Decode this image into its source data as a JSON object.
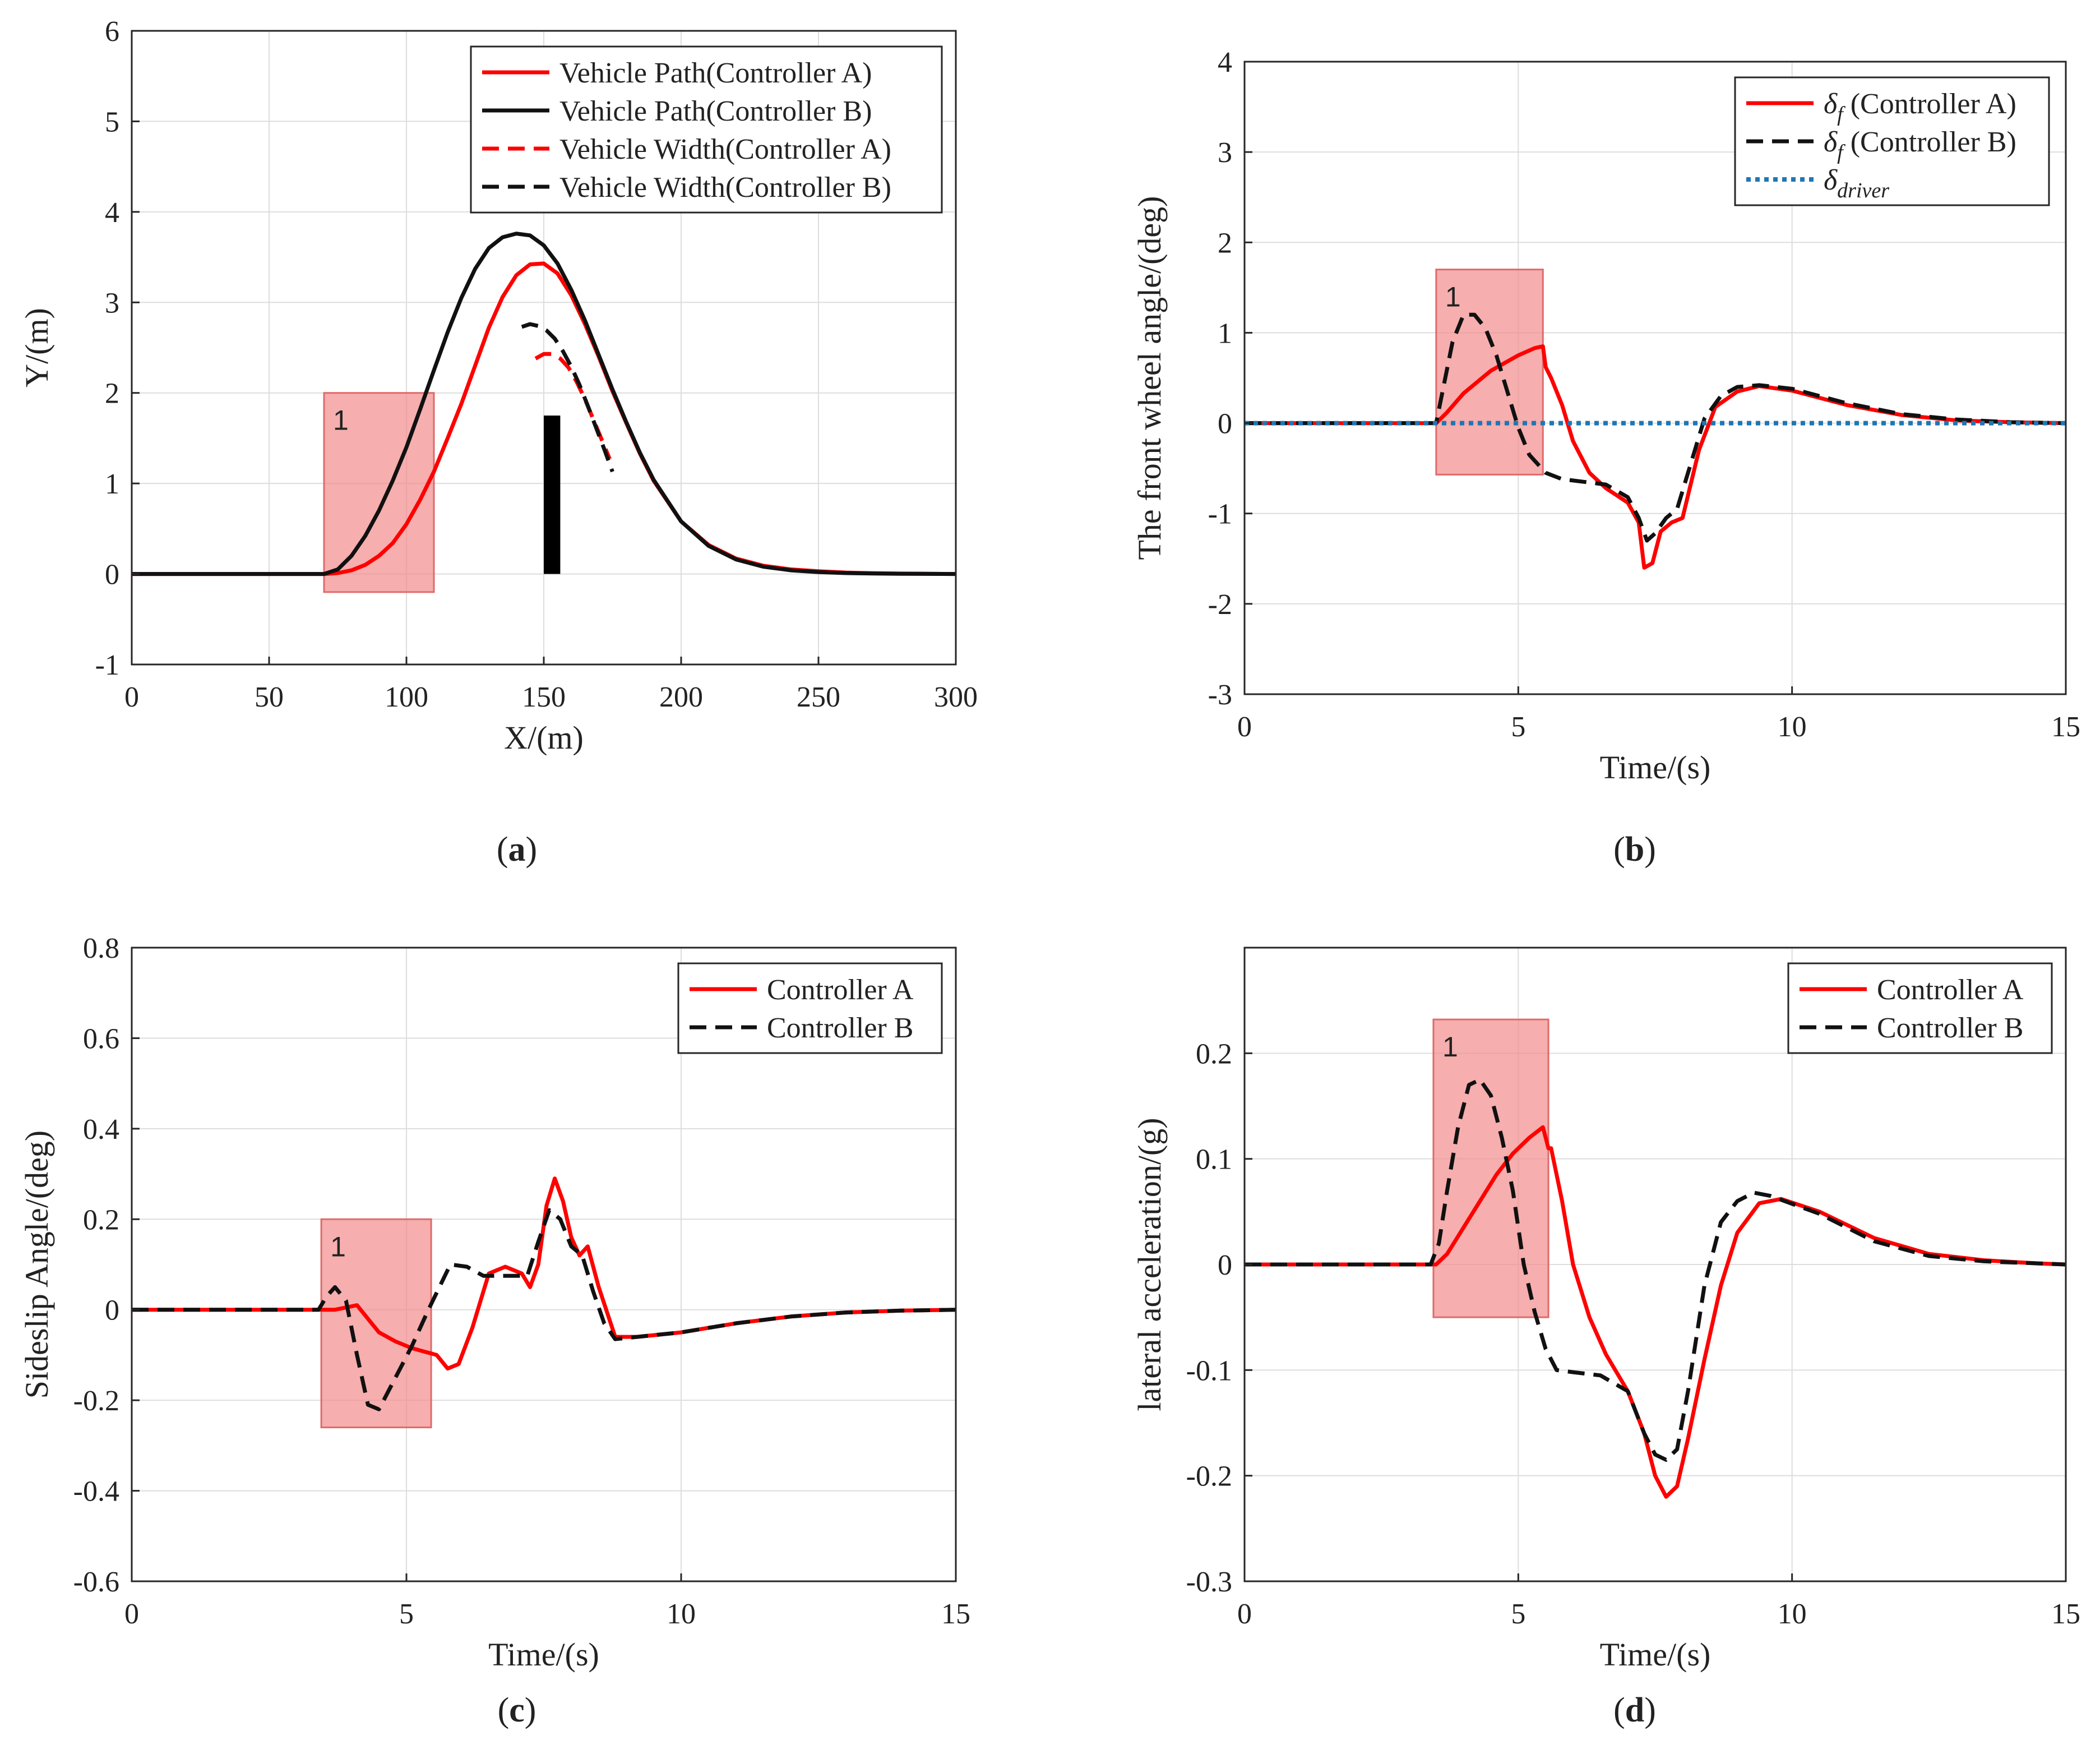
{
  "figure": {
    "colors": {
      "controllerA": "#ff0000",
      "controllerB": "#111111",
      "driver": "#1f77b4",
      "highlight": "#f28b8b",
      "highlightEdge": "#e06a6a",
      "grid": "#dddddd",
      "obstacle": "#000000"
    }
  },
  "chart_data": [
    {
      "id": "a",
      "type": "line",
      "panel_label": "a",
      "xlabel": "X/(m)",
      "ylabel": "Y/(m)",
      "xlim": [
        0,
        300
      ],
      "ylim": [
        -1,
        6
      ],
      "xticks": [
        0,
        50,
        100,
        150,
        200,
        250,
        300
      ],
      "yticks": [
        -1,
        0,
        1,
        2,
        3,
        4,
        5,
        6
      ],
      "grid": true,
      "legend": "top-right",
      "highlight": {
        "label": "1",
        "x": [
          70,
          110
        ],
        "y": [
          -0.2,
          2.0
        ]
      },
      "obstacle": {
        "x": [
          150,
          156
        ],
        "y": [
          0,
          1.75
        ]
      },
      "series": [
        {
          "name": "Vehicle Path(Controller A)",
          "color": "#ff0000",
          "dash": "solid",
          "x": [
            0,
            40,
            70,
            75,
            80,
            85,
            90,
            95,
            100,
            105,
            110,
            115,
            120,
            125,
            130,
            135,
            140,
            145,
            150,
            155,
            160,
            165,
            170,
            175,
            180,
            185,
            190,
            200,
            210,
            220,
            230,
            240,
            250,
            260,
            270,
            280,
            290,
            300
          ],
          "y": [
            0,
            0,
            0,
            0.01,
            0.04,
            0.1,
            0.2,
            0.34,
            0.55,
            0.82,
            1.13,
            1.5,
            1.88,
            2.3,
            2.72,
            3.06,
            3.3,
            3.42,
            3.43,
            3.32,
            3.08,
            2.76,
            2.4,
            2.02,
            1.67,
            1.33,
            1.03,
            0.58,
            0.32,
            0.17,
            0.09,
            0.05,
            0.03,
            0.015,
            0.008,
            0.004,
            0.002,
            0
          ]
        },
        {
          "name": "Vehicle Path(Controller B)",
          "color": "#111111",
          "dash": "solid",
          "x": [
            0,
            40,
            70,
            75,
            80,
            85,
            90,
            95,
            100,
            105,
            110,
            115,
            120,
            125,
            130,
            135,
            140,
            145,
            150,
            155,
            160,
            165,
            170,
            175,
            180,
            185,
            190,
            200,
            210,
            220,
            230,
            240,
            250,
            260,
            270,
            280,
            290,
            300
          ],
          "y": [
            0,
            0,
            0,
            0.05,
            0.2,
            0.42,
            0.7,
            1.03,
            1.4,
            1.82,
            2.25,
            2.67,
            3.05,
            3.37,
            3.6,
            3.72,
            3.76,
            3.74,
            3.63,
            3.43,
            3.14,
            2.8,
            2.42,
            2.04,
            1.68,
            1.34,
            1.04,
            0.58,
            0.31,
            0.16,
            0.08,
            0.04,
            0.02,
            0.01,
            0.005,
            0.002,
            0.001,
            0
          ]
        },
        {
          "name": "Vehicle Width(Controller A)",
          "color": "#ff0000",
          "dash": "dashed",
          "x": [
            147,
            150,
            153,
            156,
            159,
            162,
            165,
            168,
            171,
            174
          ],
          "y": [
            2.38,
            2.43,
            2.43,
            2.38,
            2.28,
            2.12,
            1.93,
            1.71,
            1.49,
            1.27
          ]
        },
        {
          "name": "Vehicle Width(Controller B)",
          "color": "#111111",
          "dash": "dashed",
          "x": [
            142,
            145,
            148,
            151,
            154,
            157,
            160,
            163,
            166,
            169,
            172,
            175
          ],
          "y": [
            2.73,
            2.76,
            2.74,
            2.69,
            2.6,
            2.46,
            2.29,
            2.09,
            1.86,
            1.62,
            1.38,
            1.13
          ]
        }
      ]
    },
    {
      "id": "b",
      "type": "line",
      "panel_label": "b",
      "xlabel": "Time/(s)",
      "ylabel": "The front wheel angle/(deg)",
      "xlim": [
        0,
        15
      ],
      "ylim": [
        -3,
        4
      ],
      "xticks": [
        0,
        5,
        10,
        15
      ],
      "yticks": [
        -3,
        -2,
        -1,
        0,
        1,
        2,
        3,
        4
      ],
      "grid": true,
      "legend": "top-right",
      "highlight": {
        "label": "1",
        "x": [
          3.5,
          5.45
        ],
        "y": [
          -0.57,
          1.7
        ]
      },
      "series": [
        {
          "name": "δf (Controller A)",
          "legend_symbol": "δ",
          "legend_sub": "f",
          "legend_text": "(Controller A)",
          "color": "#ff0000",
          "dash": "solid",
          "x": [
            0,
            3.5,
            3.7,
            4.0,
            4.5,
            5.0,
            5.3,
            5.45,
            5.5,
            5.6,
            5.8,
            6.0,
            6.3,
            6.6,
            7.0,
            7.2,
            7.3,
            7.45,
            7.6,
            7.8,
            8.0,
            8.3,
            8.6,
            9.0,
            9.4,
            10,
            11,
            12,
            13,
            14,
            15
          ],
          "y": [
            0,
            0,
            0.12,
            0.33,
            0.58,
            0.75,
            0.83,
            0.85,
            0.62,
            0.5,
            0.2,
            -0.2,
            -0.55,
            -0.72,
            -0.88,
            -1.1,
            -1.6,
            -1.55,
            -1.2,
            -1.1,
            -1.05,
            -0.3,
            0.18,
            0.35,
            0.41,
            0.36,
            0.2,
            0.09,
            0.03,
            0.01,
            0
          ]
        },
        {
          "name": "δf (Controller B)",
          "legend_symbol": "δ",
          "legend_sub": "f",
          "legend_text": "(Controller B)",
          "color": "#111111",
          "dash": "dashed",
          "x": [
            0,
            3.5,
            3.6,
            3.8,
            4.0,
            4.2,
            4.4,
            4.6,
            4.8,
            5.0,
            5.2,
            5.5,
            5.8,
            6.2,
            6.6,
            7.0,
            7.2,
            7.35,
            7.5,
            7.7,
            7.9,
            8.1,
            8.4,
            8.7,
            9.0,
            9.4,
            10,
            11,
            12,
            13,
            14,
            15
          ],
          "y": [
            0,
            0,
            0.3,
            0.9,
            1.2,
            1.2,
            1.05,
            0.75,
            0.35,
            -0.05,
            -0.35,
            -0.55,
            -0.62,
            -0.65,
            -0.68,
            -0.82,
            -1.05,
            -1.3,
            -1.22,
            -1.05,
            -0.95,
            -0.55,
            0.05,
            0.3,
            0.4,
            0.42,
            0.38,
            0.22,
            0.1,
            0.04,
            0.01,
            0
          ]
        },
        {
          "name": "δdriver",
          "legend_symbol": "δ",
          "legend_sub": "driver",
          "legend_text": "",
          "color": "#1f77b4",
          "dash": "dotted",
          "x": [
            0,
            15
          ],
          "y": [
            0,
            0
          ]
        }
      ]
    },
    {
      "id": "c",
      "type": "line",
      "panel_label": "c",
      "xlabel": "Time/(s)",
      "ylabel": "Sideslip Angle/(deg)",
      "xlim": [
        0,
        15
      ],
      "ylim": [
        -0.6,
        0.8
      ],
      "xticks": [
        0,
        5,
        10,
        15
      ],
      "yticks": [
        -0.6,
        -0.4,
        -0.2,
        0,
        0.2,
        0.4,
        0.6,
        0.8
      ],
      "grid": true,
      "legend": "top-right",
      "highlight": {
        "label": "1",
        "x": [
          3.45,
          5.45
        ],
        "y": [
          -0.26,
          0.2
        ]
      },
      "series": [
        {
          "name": "Controller A",
          "color": "#ff0000",
          "dash": "solid",
          "x": [
            0,
            3.5,
            3.7,
            3.9,
            4.1,
            4.3,
            4.5,
            4.8,
            5.1,
            5.4,
            5.55,
            5.75,
            5.95,
            6.2,
            6.5,
            6.8,
            7.1,
            7.25,
            7.4,
            7.55,
            7.7,
            7.85,
            8.0,
            8.15,
            8.3,
            8.5,
            8.8,
            9.2,
            10,
            11,
            12,
            13,
            14,
            15
          ],
          "y": [
            0,
            0,
            0.0,
            0.005,
            0.01,
            -0.02,
            -0.05,
            -0.07,
            -0.085,
            -0.095,
            -0.1,
            -0.13,
            -0.12,
            -0.04,
            0.08,
            0.095,
            0.08,
            0.05,
            0.1,
            0.23,
            0.29,
            0.24,
            0.16,
            0.12,
            0.14,
            0.05,
            -0.06,
            -0.06,
            -0.05,
            -0.03,
            -0.015,
            -0.006,
            -0.002,
            0
          ]
        },
        {
          "name": "Controller B",
          "color": "#111111",
          "dash": "dashed",
          "x": [
            0,
            3.4,
            3.55,
            3.7,
            3.9,
            4.1,
            4.3,
            4.5,
            4.8,
            5.1,
            5.4,
            5.6,
            5.8,
            6.1,
            6.4,
            6.8,
            7.2,
            7.4,
            7.6,
            7.8,
            8.0,
            8.2,
            8.4,
            8.6,
            8.8,
            9.2,
            10,
            11,
            12,
            13,
            14,
            15
          ],
          "y": [
            0,
            0,
            0.03,
            0.05,
            0.02,
            -0.1,
            -0.21,
            -0.22,
            -0.15,
            -0.08,
            0.0,
            0.05,
            0.1,
            0.095,
            0.075,
            0.075,
            0.075,
            0.15,
            0.22,
            0.2,
            0.14,
            0.12,
            0.04,
            -0.03,
            -0.065,
            -0.06,
            -0.05,
            -0.03,
            -0.015,
            -0.006,
            -0.002,
            0
          ]
        }
      ]
    },
    {
      "id": "d",
      "type": "line",
      "panel_label": "d",
      "xlabel": "Time/(s)",
      "ylabel": "lateral acceleration/(g)",
      "xlim": [
        0,
        15
      ],
      "ylim": [
        -0.3,
        0.3
      ],
      "xticks": [
        0,
        5,
        10,
        15
      ],
      "yticks": [
        -0.3,
        -0.2,
        -0.1,
        0,
        0.1,
        0.2
      ],
      "grid": true,
      "legend": "top-right",
      "highlight": {
        "label": "1",
        "x": [
          3.45,
          5.55
        ],
        "y": [
          -0.05,
          0.232
        ]
      },
      "series": [
        {
          "name": "Controller A",
          "color": "#ff0000",
          "dash": "solid",
          "x": [
            0,
            3.5,
            3.7,
            4.0,
            4.3,
            4.6,
            4.9,
            5.2,
            5.45,
            5.55,
            5.6,
            5.8,
            6.0,
            6.3,
            6.6,
            7.0,
            7.3,
            7.5,
            7.7,
            7.9,
            8.1,
            8.4,
            8.7,
            9.0,
            9.4,
            9.8,
            10.5,
            11.5,
            12.5,
            13.5,
            14.5,
            15
          ],
          "y": [
            0,
            0,
            0.01,
            0.035,
            0.06,
            0.085,
            0.105,
            0.12,
            0.13,
            0.11,
            0.11,
            0.06,
            0.0,
            -0.05,
            -0.085,
            -0.12,
            -0.16,
            -0.2,
            -0.22,
            -0.21,
            -0.165,
            -0.09,
            -0.02,
            0.03,
            0.058,
            0.062,
            0.05,
            0.025,
            0.01,
            0.004,
            0.001,
            0
          ]
        },
        {
          "name": "Controller B",
          "color": "#111111",
          "dash": "dashed",
          "x": [
            0,
            3.4,
            3.55,
            3.7,
            3.9,
            4.1,
            4.3,
            4.5,
            4.7,
            4.9,
            5.1,
            5.3,
            5.5,
            5.7,
            6.0,
            6.5,
            7.0,
            7.3,
            7.5,
            7.7,
            7.9,
            8.1,
            8.4,
            8.7,
            9.0,
            9.3,
            9.6,
            10.5,
            11.5,
            12.5,
            13.5,
            14.5,
            15
          ],
          "y": [
            0,
            0,
            0.02,
            0.07,
            0.13,
            0.17,
            0.175,
            0.16,
            0.12,
            0.07,
            0.0,
            -0.045,
            -0.08,
            -0.1,
            -0.102,
            -0.105,
            -0.12,
            -0.16,
            -0.18,
            -0.185,
            -0.175,
            -0.12,
            -0.02,
            0.04,
            0.06,
            0.068,
            0.065,
            0.048,
            0.022,
            0.008,
            0.003,
            0.001,
            0
          ]
        }
      ]
    }
  ]
}
